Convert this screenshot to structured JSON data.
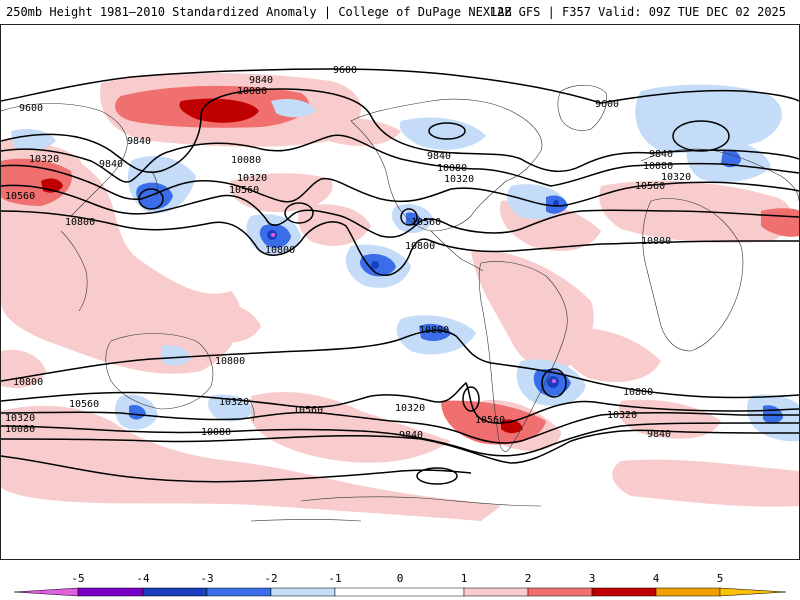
{
  "header": {
    "title": "250mb Height 1981–2010 Standardized Anomaly | College of DuPage NEXLAB",
    "run_info": "12Z GFS | F357 Valid: 09Z TUE DEC 02 2025"
  },
  "contour_labels": {
    "l9600_a": "9600",
    "l9600_b": "9600",
    "l9600_c": "9600",
    "l9840_a": "9840",
    "l9840_b": "9840",
    "l9840_c": "9840",
    "l9840_d": "9840",
    "l9840_e": "9840",
    "l9840_f": "9840",
    "l9840_g": "9840",
    "l10080_a": "10080",
    "l10080_b": "10080",
    "l10080_c": "10080",
    "l10080_d": "10080",
    "l10080_e": "10080",
    "l10080_f": "10080",
    "l10320_a": "10320",
    "l10320_b": "10320",
    "l10320_c": "10320",
    "l10320_d": "10320",
    "l10320_e": "10320",
    "l10320_f": "10320",
    "l10320_g": "10320",
    "l10320_h": "10320",
    "l10560_a": "10560",
    "l10560_b": "10560",
    "l10560_c": "10560",
    "l10560_d": "10560",
    "l10560_e": "10560",
    "l10560_f": "10560",
    "l10560_g": "10560",
    "l10800_a": "10800",
    "l10800_b": "10800",
    "l10800_c": "10800",
    "l10800_d": "10800",
    "l10800_e": "10800",
    "l10800_f": "10800",
    "l10800_g": "10800",
    "l10800_h": "10800",
    "l10800_i": "10800",
    "l10800_j": "10800"
  },
  "colorbar": {
    "ticks": [
      "-5",
      "-4",
      "-3",
      "-2",
      "-1",
      "0",
      "1",
      "2",
      "3",
      "4",
      "5"
    ],
    "colors": {
      "neg5": "#e060e0",
      "neg4": "#7a00c8",
      "neg3": "#1a3ec0",
      "neg2": "#3a6ee8",
      "neg1": "#c4dcf8",
      "zero": "#ffffff",
      "pos1": "#f8cccc",
      "pos2": "#f07070",
      "pos3": "#c00000",
      "pos4": "#f0a000",
      "pos5": "#f8c000"
    }
  }
}
